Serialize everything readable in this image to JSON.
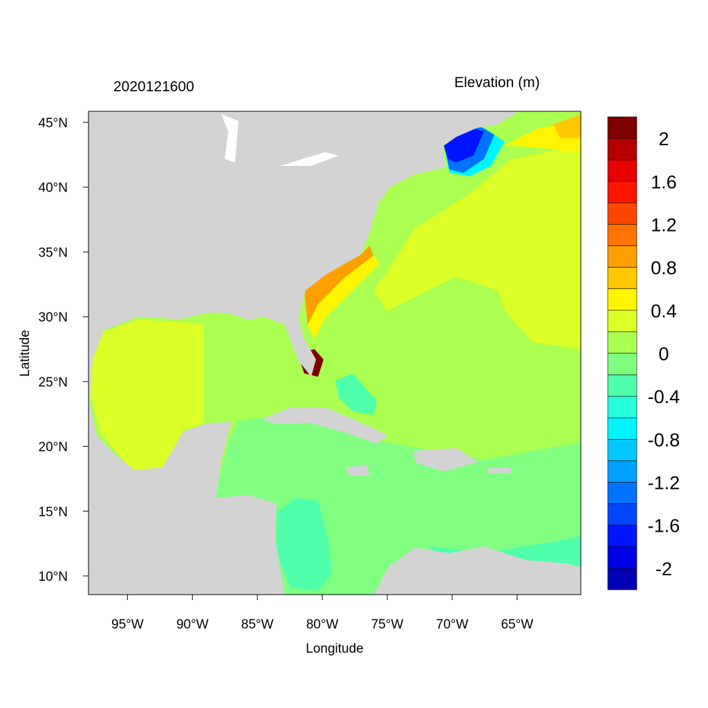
{
  "title_left": "2020121600",
  "title_right": "Elevation (m)",
  "map": {
    "xlabel": "Longitude",
    "ylabel": "Latitude",
    "lon_range": [
      -98,
      -60.1
    ],
    "lat_range": [
      8.56,
      45.85
    ],
    "lon_ticks": [
      {
        "v": -95,
        "label": "95°W"
      },
      {
        "v": -90,
        "label": "90°W"
      },
      {
        "v": -85,
        "label": "85°W"
      },
      {
        "v": -80,
        "label": "80°W"
      },
      {
        "v": -75,
        "label": "75°W"
      },
      {
        "v": -70,
        "label": "70°W"
      },
      {
        "v": -65,
        "label": "65°W"
      }
    ],
    "lat_ticks": [
      {
        "v": 45,
        "label": "45°N"
      },
      {
        "v": 40,
        "label": "40°N"
      },
      {
        "v": 35,
        "label": "35°N"
      },
      {
        "v": 30,
        "label": "30°N"
      },
      {
        "v": 25,
        "label": "25°N"
      },
      {
        "v": 20,
        "label": "20°N"
      },
      {
        "v": 15,
        "label": "15°N"
      },
      {
        "v": 10,
        "label": "10°N"
      }
    ],
    "land_color": "#D3D3D3"
  },
  "colorbar": {
    "colors": [
      "#800000",
      "#B40000",
      "#E60000",
      "#FF1400",
      "#FF4600",
      "#FF7300",
      "#FFA000",
      "#FFC800",
      "#FFF500",
      "#DCFF28",
      "#AAFF50",
      "#80FF80",
      "#50FFAA",
      "#28FFDC",
      "#00F5FF",
      "#00C8FF",
      "#00A0FF",
      "#0073FF",
      "#0046FF",
      "#0014FF",
      "#0000E6",
      "#0000B4"
    ],
    "labels": [
      "2",
      "1.6",
      "1.2",
      "0.8",
      "0.4",
      "0",
      "-0.4",
      "-0.8",
      "-1.2",
      "-1.6",
      "-2"
    ]
  }
}
